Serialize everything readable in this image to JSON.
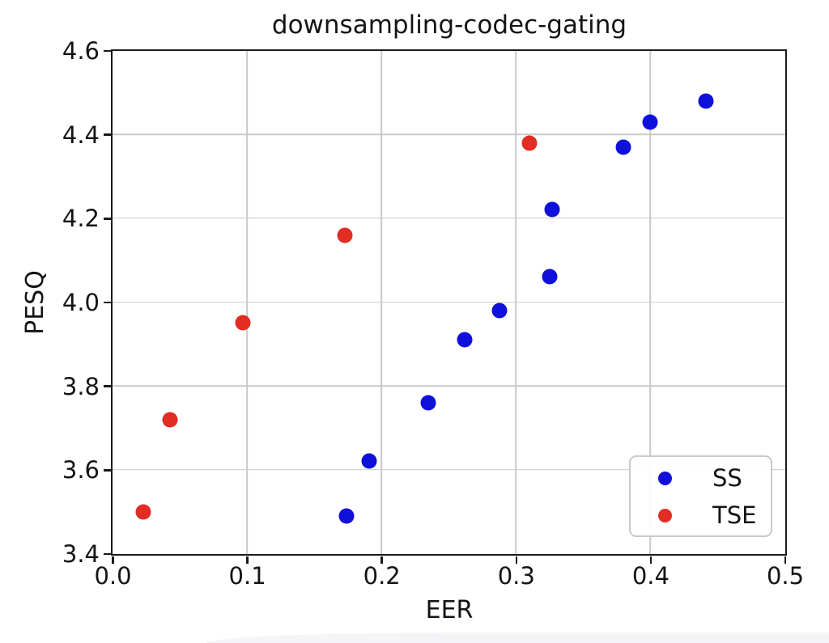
{
  "chart_data": {
    "type": "scatter",
    "title": "downsampling-codec-gating",
    "xlabel": "EER",
    "ylabel": "PESQ",
    "xlim": [
      0.0,
      0.5
    ],
    "ylim": [
      3.4,
      4.6
    ],
    "grid": true,
    "legend_position": "lower right",
    "x_ticks": [
      {
        "v": 0.0,
        "label": "0.0"
      },
      {
        "v": 0.1,
        "label": "0.1"
      },
      {
        "v": 0.2,
        "label": "0.2"
      },
      {
        "v": 0.3,
        "label": "0.3"
      },
      {
        "v": 0.4,
        "label": "0.4"
      },
      {
        "v": 0.5,
        "label": "0.5"
      }
    ],
    "y_ticks": [
      {
        "v": 3.4,
        "label": "3.4"
      },
      {
        "v": 3.6,
        "label": "3.6"
      },
      {
        "v": 3.8,
        "label": "3.8"
      },
      {
        "v": 4.0,
        "label": "4.0"
      },
      {
        "v": 4.2,
        "label": "4.2"
      },
      {
        "v": 4.4,
        "label": "4.4"
      },
      {
        "v": 4.6,
        "label": "4.6"
      }
    ],
    "series": [
      {
        "name": "SS",
        "color": "#1010dc",
        "points": [
          [
            0.174,
            3.49
          ],
          [
            0.191,
            3.62
          ],
          [
            0.235,
            3.76
          ],
          [
            0.262,
            3.91
          ],
          [
            0.288,
            3.98
          ],
          [
            0.325,
            4.06
          ],
          [
            0.327,
            4.22
          ],
          [
            0.38,
            4.37
          ],
          [
            0.4,
            4.43
          ],
          [
            0.441,
            4.48
          ]
        ]
      },
      {
        "name": "TSE",
        "color": "#e12d23",
        "points": [
          [
            0.023,
            3.5
          ],
          [
            0.043,
            3.72
          ],
          [
            0.097,
            3.95
          ],
          [
            0.173,
            4.16
          ],
          [
            0.31,
            4.38
          ]
        ]
      }
    ]
  },
  "colors": {
    "grid": "#c9c9c9",
    "spine": "#1a1a1a",
    "text": "#141414",
    "legend_border": "#c9c9c9",
    "background": "#ffffff"
  }
}
